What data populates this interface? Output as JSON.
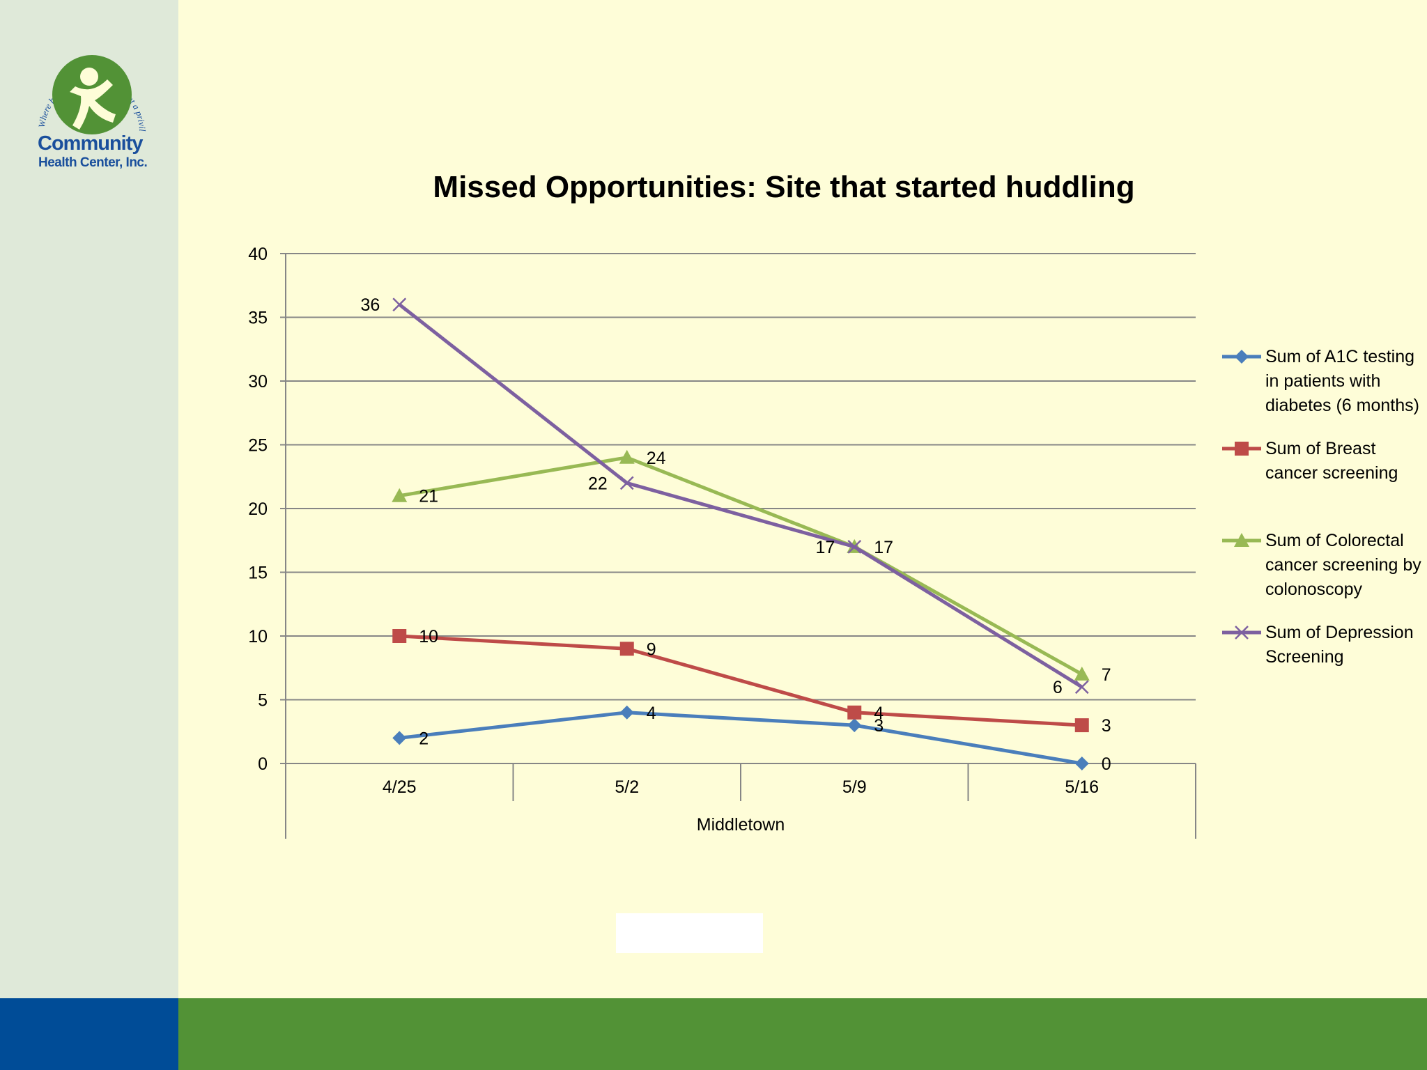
{
  "slide": {
    "logo": {
      "line1": "Community",
      "line2": "Health Center, Inc.",
      "arc_text": "Where health care is a right, not a privilege since 1972"
    }
  },
  "colors": {
    "background": "#fefdd8",
    "left_panel": "#dfe9d9",
    "footer_blue": "#004c97",
    "footer_green": "#529236"
  },
  "chart_data": {
    "type": "line",
    "title": "Missed Opportunities: Site that started huddling",
    "categories": [
      "4/25",
      "5/2",
      "5/9",
      "5/16"
    ],
    "group_label": "Middletown",
    "ylim": [
      0,
      40
    ],
    "yticks": [
      0,
      5,
      10,
      15,
      20,
      25,
      30,
      35,
      40
    ],
    "grid": true,
    "legend_position": "right",
    "series": [
      {
        "name": "Sum of A1C testing in patients with diabetes (6 months)",
        "values": [
          2,
          4,
          3,
          0
        ],
        "color": "#4a7ebb",
        "marker": "diamond"
      },
      {
        "name": "Sum of Breast cancer screening",
        "values": [
          10,
          9,
          4,
          3
        ],
        "color": "#be4b48",
        "marker": "square"
      },
      {
        "name": "Sum of Colorectal cancer screening by colonoscopy",
        "values": [
          21,
          24,
          17,
          7
        ],
        "color": "#98b954",
        "marker": "triangle"
      },
      {
        "name": "Sum of Depression Screening",
        "values": [
          36,
          22,
          17,
          6
        ],
        "color": "#7d60a0",
        "marker": "x"
      }
    ]
  }
}
